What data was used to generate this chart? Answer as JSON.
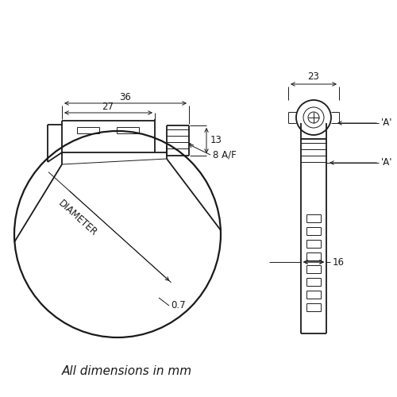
{
  "bg_color": "#ffffff",
  "line_color": "#1a1a1a",
  "lw_main": 1.3,
  "lw_thin": 0.7,
  "lw_dim": 0.7,
  "footer_text": "All dimensions in mm",
  "dims": {
    "d36": "36",
    "d27": "27",
    "d8af": "8 A/F",
    "d13": "13",
    "d23": "23",
    "d16": "16",
    "d07": "0.7",
    "dA_top": "'A'",
    "dA_mid": "'A'",
    "dDIAMETER": "DIAMETER"
  },
  "fontsize_dim": 8.5,
  "fontsize_footer": 11
}
